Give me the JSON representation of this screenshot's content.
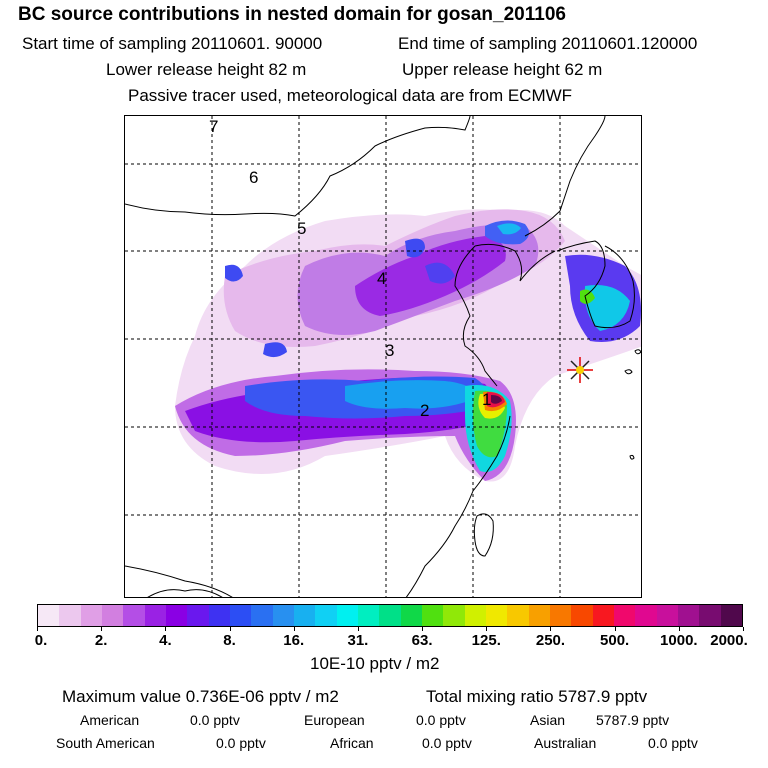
{
  "header": {
    "title": "BC  source contributions in nested domain for gosan_201106",
    "start_label": "Start time of sampling 20110601. 90000",
    "end_label": "End time of sampling 20110601.120000",
    "lower_label": "Lower release height   82 m",
    "upper_label": "Upper release height   62 m",
    "tracer_label": "Passive tracer used, meteorological data are from ECMWF"
  },
  "map": {
    "region_labels": [
      "1",
      "2",
      "3",
      "4",
      "5",
      "6",
      "7"
    ],
    "receptor_marker": "star-marker"
  },
  "colorbar": {
    "colors": [
      "#f6e8f6",
      "#ecc8ee",
      "#e09fe6",
      "#d27fe0",
      "#b44ee6",
      "#9a22e4",
      "#8a00e4",
      "#6a18ee",
      "#3e32f2",
      "#2c4ef4",
      "#2a70f2",
      "#2890f0",
      "#18b0f0",
      "#10d0f4",
      "#00f0f0",
      "#00eec0",
      "#00e088",
      "#10d848",
      "#50e010",
      "#90e808",
      "#d0f000",
      "#f0e800",
      "#f8c800",
      "#f8a000",
      "#f87800",
      "#f84800",
      "#f81820",
      "#f0086c",
      "#e00890",
      "#c8109c",
      "#a01090",
      "#780c70",
      "#50084c"
    ],
    "tick_labels": [
      "0.",
      "2.",
      "4.",
      "8.",
      "16.",
      "31.",
      "63.",
      "125.",
      "250.",
      "500.",
      "1000.",
      "2000."
    ],
    "units": "10E-10 pptv / m2"
  },
  "footer": {
    "max_label": "Maximum value  0.736E-06 pptv / m2",
    "total_label": "Total mixing ratio     5787.9 pptv",
    "american": {
      "label": "American",
      "value": "0.0 pptv"
    },
    "european": {
      "label": "European",
      "value": "0.0 pptv"
    },
    "asian": {
      "label": "Asian",
      "value": "5787.9 pptv"
    },
    "south_american": {
      "label": "South American",
      "value": "0.0 pptv"
    },
    "african": {
      "label": "African",
      "value": "0.0 pptv"
    },
    "australian": {
      "label": "Australian",
      "value": "0.0 pptv"
    }
  }
}
